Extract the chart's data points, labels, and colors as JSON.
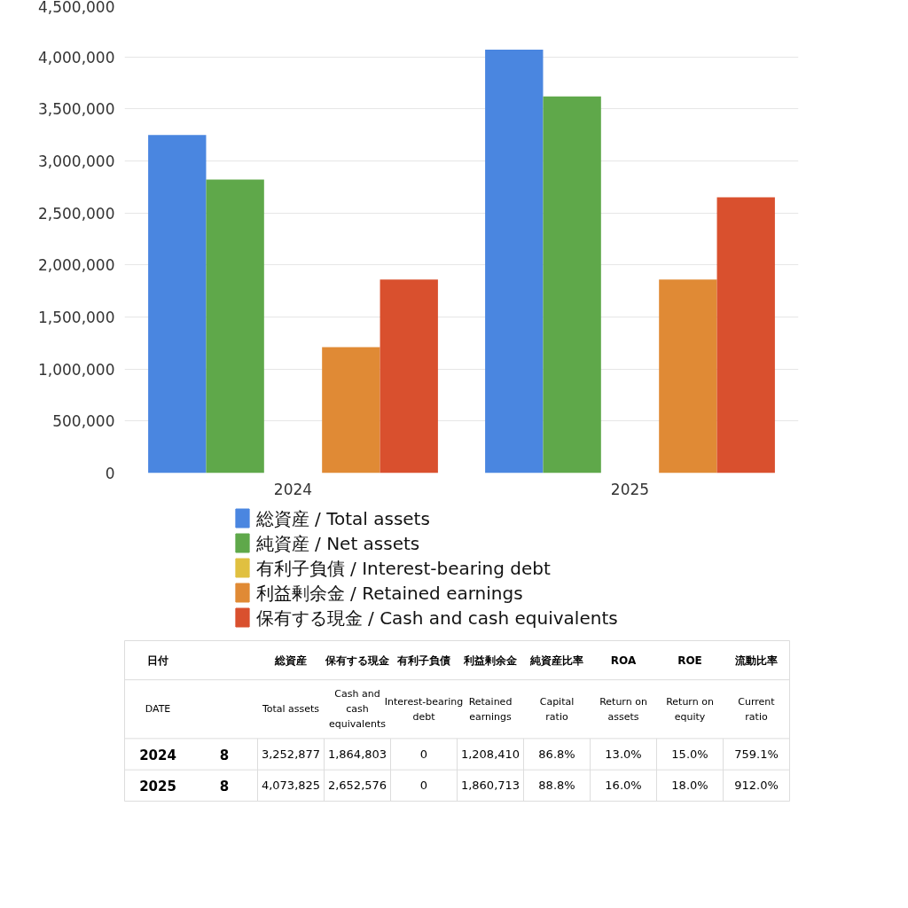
{
  "chart_data": [
    {
      "type": "bar",
      "categories": [
        "2024",
        "2025"
      ],
      "series": [
        {
          "name": "総資産 / Total assets",
          "color": "#4a86e0",
          "values": [
            3250000,
            4070000
          ]
        },
        {
          "name": "純資産 / Net assets",
          "color": "#5fa84a",
          "values": [
            2820000,
            3620000
          ]
        },
        {
          "name": "有利子負債 / Interest-bearing debt",
          "color": "#e0c040",
          "values": [
            0,
            0
          ]
        },
        {
          "name": "利益剰余金 / Retained earnings",
          "color": "#e08a35",
          "values": [
            1210000,
            1860000
          ]
        },
        {
          "name": "保有する現金 /  Cash and cash equivalents",
          "color": "#d9502e",
          "values": [
            1860000,
            2650000
          ]
        }
      ],
      "ylim": [
        0,
        4500000
      ],
      "yticks": [
        {
          "value": 0,
          "label": "0"
        },
        {
          "value": 500000,
          "label": "500,000"
        },
        {
          "value": 1000000,
          "label": "1,000,000"
        },
        {
          "value": 1500000,
          "label": "1,500,000"
        },
        {
          "value": 2000000,
          "label": "2,000,000"
        },
        {
          "value": 2500000,
          "label": "2,500,000"
        },
        {
          "value": 3000000,
          "label": "3,000,000"
        },
        {
          "value": 3500000,
          "label": "3,500,000"
        },
        {
          "value": 4000000,
          "label": "4,000,000"
        },
        {
          "value": 4500000,
          "label": "4,500,000"
        }
      ],
      "grid": "y",
      "legend": "bottom"
    },
    {
      "type": "other",
      "categories": [
        "日付",
        null,
        "総資産",
        "保有する現金",
        "有利子負債",
        "利益剰余金",
        "純資産比率",
        "ROA",
        "ROE",
        "流動比率"
      ],
      "annotations": [
        "DATE",
        null,
        "Total assets",
        "Cash and cash equivalents",
        "Interest-bearing debt",
        "Retained earnings",
        "Capital ratio",
        "Return on assets",
        "Return on equity",
        "Current ratio",
        "2024",
        "8",
        "3,252,877",
        "1,864,803",
        "0",
        "1,208,410",
        "86.8%",
        "13.0%",
        "15.0%",
        "759.1%",
        "2025",
        "8",
        "4,073,825",
        "2,652,576",
        "0",
        "1,860,713",
        "88.8%",
        "16.0%",
        "18.0%",
        "912.0%"
      ]
    }
  ]
}
